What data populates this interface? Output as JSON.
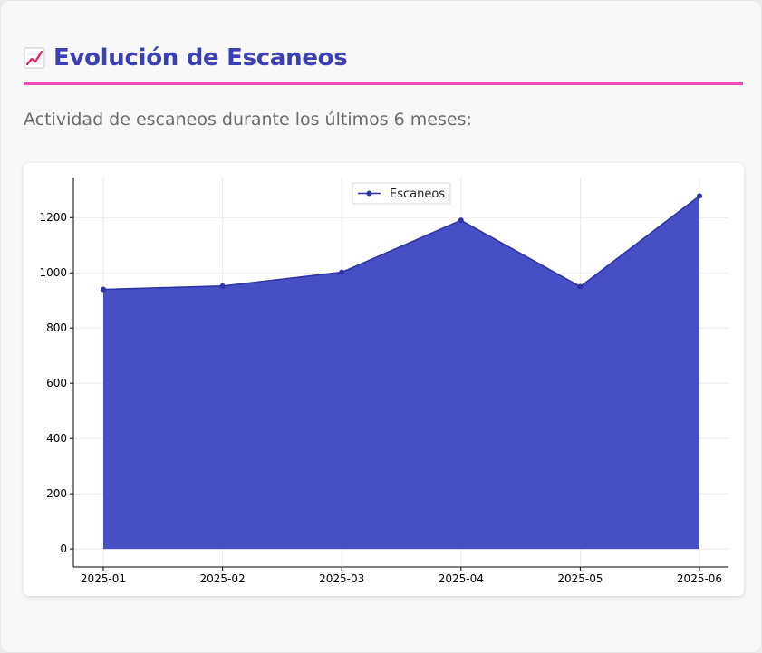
{
  "header": {
    "title": "Evolución de Escaneos",
    "title_icon": "chart-increasing-icon",
    "subtitle": "Actividad de escaneos durante los últimos 6 meses:"
  },
  "colors": {
    "title": "#3a3fb8",
    "rule": "#ee4dbf",
    "series_line": "#2f33a8",
    "series_fill": "#474fc5"
  },
  "chart_data": {
    "type": "area",
    "categories": [
      "2025-01",
      "2025-02",
      "2025-03",
      "2025-04",
      "2025-05",
      "2025-06"
    ],
    "series": [
      {
        "name": "Escaneos",
        "values": [
          940,
          952,
          1002,
          1190,
          950,
          1278
        ]
      }
    ],
    "yticks": [
      0,
      200,
      400,
      600,
      800,
      1000,
      1200
    ],
    "ylim": [
      -65,
      1345
    ],
    "grid": true,
    "legend": "top-center"
  }
}
